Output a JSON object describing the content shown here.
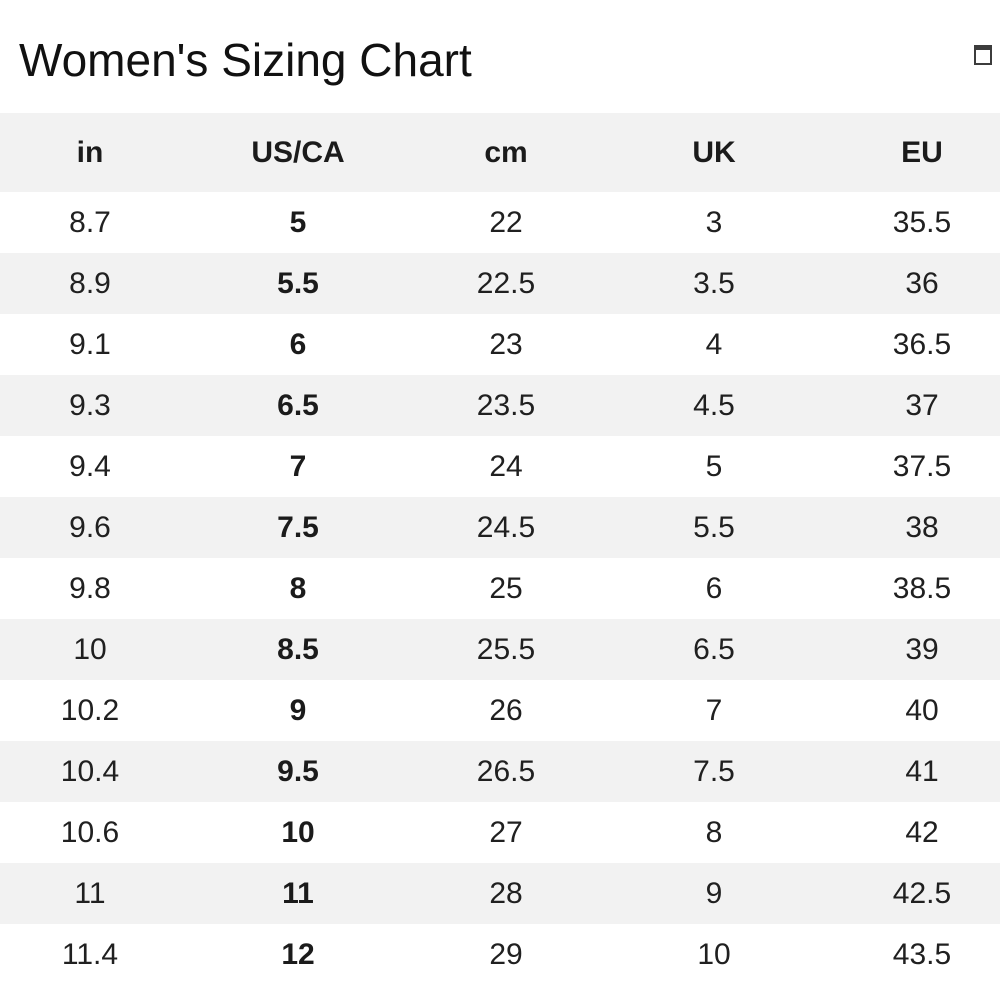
{
  "page": {
    "title": "Women's Sizing Chart"
  },
  "icons": {
    "top_right": "missing-glyph-box"
  },
  "colors": {
    "background": "#ffffff",
    "stripe": "#f2f2f2",
    "header_bg": "#f2f2f2",
    "text": "#202020",
    "title_text": "#111111"
  },
  "table": {
    "headers": [
      "in",
      "US/CA",
      "cm",
      "UK",
      "EU"
    ],
    "bold_column_index": 1,
    "rows": [
      [
        "8.7",
        "5",
        "22",
        "3",
        "35.5"
      ],
      [
        "8.9",
        "5.5",
        "22.5",
        "3.5",
        "36"
      ],
      [
        "9.1",
        "6",
        "23",
        "4",
        "36.5"
      ],
      [
        "9.3",
        "6.5",
        "23.5",
        "4.5",
        "37"
      ],
      [
        "9.4",
        "7",
        "24",
        "5",
        "37.5"
      ],
      [
        "9.6",
        "7.5",
        "24.5",
        "5.5",
        "38"
      ],
      [
        "9.8",
        "8",
        "25",
        "6",
        "38.5"
      ],
      [
        "10",
        "8.5",
        "25.5",
        "6.5",
        "39"
      ],
      [
        "10.2",
        "9",
        "26",
        "7",
        "40"
      ],
      [
        "10.4",
        "9.5",
        "26.5",
        "7.5",
        "41"
      ],
      [
        "10.6",
        "10",
        "27",
        "8",
        "42"
      ],
      [
        "11",
        "11",
        "28",
        "9",
        "42.5"
      ],
      [
        "11.4",
        "12",
        "29",
        "10",
        "43.5"
      ]
    ]
  }
}
